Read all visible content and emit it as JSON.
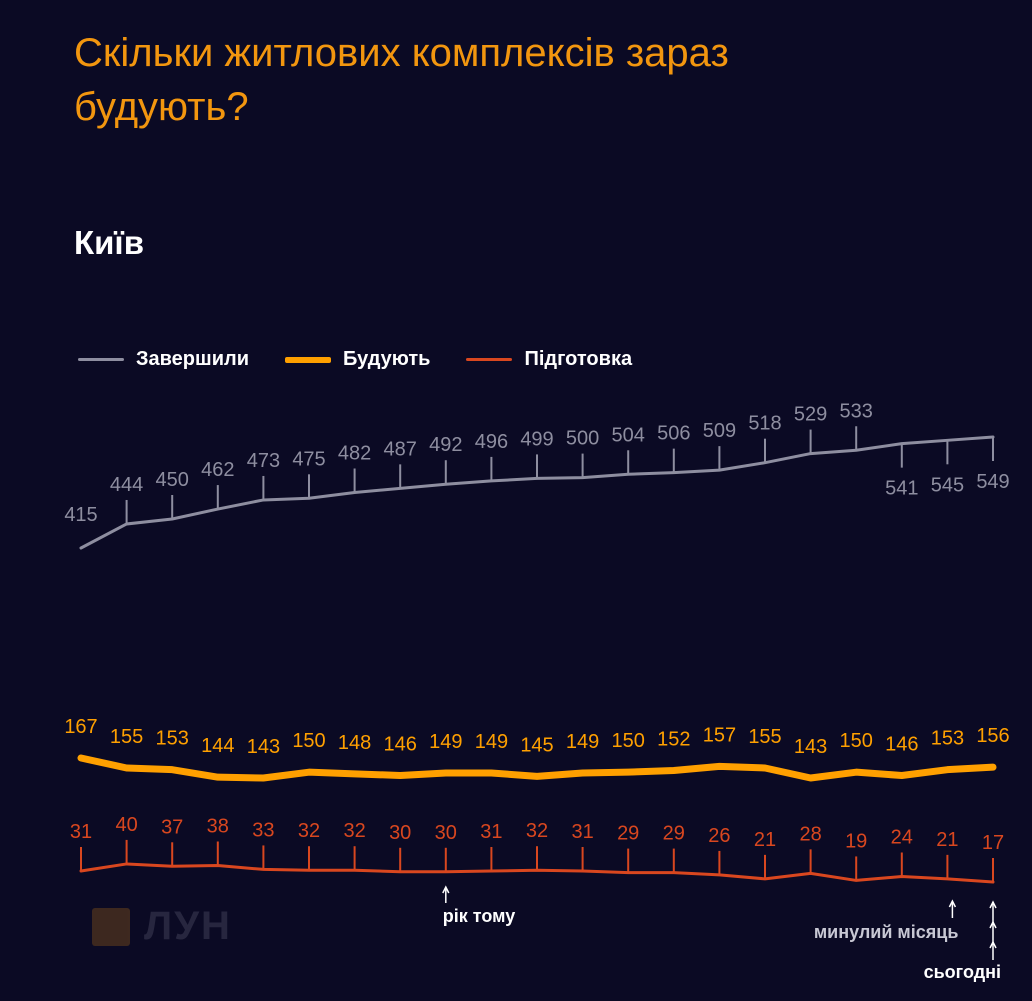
{
  "header": {
    "title": "Скільки житлових комплексів зараз будують?",
    "city": "Київ"
  },
  "legend": [
    {
      "label": "Завершили",
      "color": "#8e8ea0"
    },
    {
      "label": "Будують",
      "color": "#ffa000"
    },
    {
      "label": "Підготовка",
      "color": "#d9471f"
    }
  ],
  "logo": {
    "text": "ЛУН"
  },
  "annotations": {
    "year_ago": "рік тому",
    "last_month": "минулий місяць",
    "today": "сьогодні"
  },
  "colors": {
    "background": "#0b0a24",
    "title": "#f2960f",
    "completed": "#8e8ea0",
    "building": "#ffa000",
    "preparation": "#d9471f"
  },
  "chart_data": {
    "type": "line",
    "title": "Скільки житлових комплексів зараз будують?",
    "subtitle": "Київ",
    "point_count": 21,
    "series": [
      {
        "name": "Завершили",
        "values": [
          415,
          444,
          450,
          462,
          473,
          475,
          482,
          487,
          492,
          496,
          499,
          500,
          504,
          506,
          509,
          518,
          529,
          533,
          541,
          545,
          549
        ]
      },
      {
        "name": "Будують",
        "values": [
          167,
          155,
          153,
          144,
          143,
          150,
          148,
          146,
          149,
          149,
          145,
          149,
          150,
          152,
          157,
          155,
          143,
          150,
          146,
          153,
          156
        ]
      },
      {
        "name": "Підготовка",
        "values": [
          31,
          40,
          37,
          38,
          33,
          32,
          32,
          30,
          30,
          31,
          32,
          31,
          29,
          29,
          26,
          21,
          28,
          19,
          24,
          21,
          17
        ]
      }
    ],
    "markers": [
      {
        "index": 8,
        "label": "рік тому"
      },
      {
        "index": 19,
        "label": "минулий місяць"
      },
      {
        "index": 20,
        "label": "сьогодні"
      }
    ],
    "legend_position": "top-left",
    "grid": false
  }
}
